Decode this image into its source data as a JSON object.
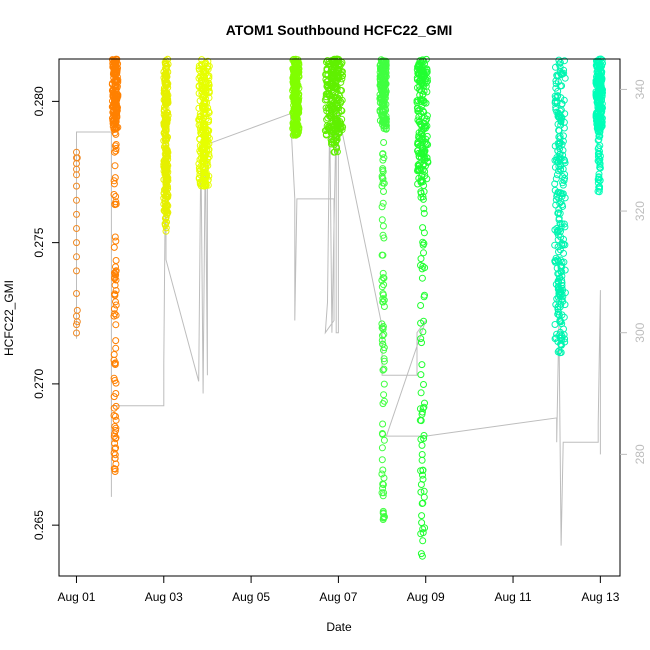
{
  "chart_data": {
    "type": "scatter",
    "title": "ATOM1 Southbound HCFC22_GMI",
    "xlabel": "Date",
    "ylabel": "HCFC22_GMI",
    "x_ticks": [
      {
        "day": 1,
        "label": "Aug 01"
      },
      {
        "day": 3,
        "label": "Aug 03"
      },
      {
        "day": 5,
        "label": "Aug 05"
      },
      {
        "day": 7,
        "label": "Aug 07"
      },
      {
        "day": 9,
        "label": "Aug 09"
      },
      {
        "day": 11,
        "label": "Aug 11"
      },
      {
        "day": 13,
        "label": "Aug 13"
      }
    ],
    "xlim": [
      0.6,
      13.45
    ],
    "ylim": [
      0.2632,
      0.2815
    ],
    "y_ticks": [
      {
        "value": 0.265,
        "label": "0.265"
      },
      {
        "value": 0.27,
        "label": "0.270"
      },
      {
        "value": 0.275,
        "label": "0.275"
      },
      {
        "value": 0.28,
        "label": "0.280"
      }
    ],
    "y2_lim": [
      260,
      345
    ],
    "y2_ticks": [
      {
        "value": 280,
        "label": "280"
      },
      {
        "value": 300,
        "label": "300"
      },
      {
        "value": 320,
        "label": "320"
      },
      {
        "value": 340,
        "label": "340"
      }
    ],
    "secondary_series": {
      "color": "#bdbdbd",
      "points": [
        [
          1.0,
          299.0
        ],
        [
          1.0,
          333.0
        ],
        [
          1.8,
          333.0
        ],
        [
          1.8,
          273.0
        ],
        [
          1.8,
          288.0
        ],
        [
          3.0,
          288.0
        ],
        [
          3.0,
          295.0
        ],
        [
          3.05,
          337.0
        ],
        [
          3.05,
          312.0
        ],
        [
          3.8,
          292.0
        ],
        [
          3.85,
          331.0
        ],
        [
          3.9,
          290.0
        ],
        [
          3.95,
          331.0
        ],
        [
          4.0,
          293.0
        ],
        [
          4.0,
          331.0
        ],
        [
          5.9,
          336.0
        ],
        [
          6.0,
          322.0
        ],
        [
          6.0,
          302.0
        ],
        [
          6.05,
          322.0
        ],
        [
          6.9,
          322.0
        ],
        [
          6.9,
          302.0
        ],
        [
          6.7,
          300.0
        ],
        [
          6.75,
          305.0
        ],
        [
          6.8,
          336.0
        ],
        [
          6.85,
          300.0
        ],
        [
          6.95,
          336.0
        ],
        [
          6.95,
          300.0
        ],
        [
          7.0,
          300.0
        ],
        [
          7.0,
          336.0
        ],
        [
          8.0,
          301.0
        ],
        [
          8.0,
          293.0
        ],
        [
          8.8,
          293.0
        ],
        [
          8.8,
          300.0
        ],
        [
          9.0,
          302.0
        ],
        [
          8.1,
          283.0
        ],
        [
          9.0,
          283.0
        ],
        [
          12.0,
          286.0
        ],
        [
          12.0,
          282.0
        ],
        [
          12.05,
          302.0
        ],
        [
          12.1,
          265.0
        ],
        [
          12.15,
          282.0
        ],
        [
          12.95,
          282.0
        ],
        [
          12.95,
          285.0
        ],
        [
          13.0,
          307.0
        ],
        [
          13.0,
          280.0
        ]
      ]
    },
    "series": [
      {
        "color": "#f08a24",
        "points": [
          [
            1.0,
            0.2782
          ],
          [
            1.0,
            0.278
          ],
          [
            1.0,
            0.2778
          ],
          [
            1.0,
            0.2776
          ],
          [
            1.0,
            0.2774
          ],
          [
            1.0,
            0.277
          ],
          [
            1.0,
            0.2765
          ],
          [
            1.0,
            0.276
          ],
          [
            1.0,
            0.2755
          ],
          [
            1.0,
            0.275
          ],
          [
            1.0,
            0.2745
          ],
          [
            1.0,
            0.274
          ],
          [
            1.0,
            0.2732
          ],
          [
            1.0,
            0.2724
          ],
          [
            1.0,
            0.2721
          ],
          [
            1.0,
            0.2718
          ],
          [
            1.02,
            0.2722
          ],
          [
            1.02,
            0.278
          ],
          [
            1.02,
            0.2726
          ]
        ],
        "style": "open-circle"
      },
      {
        "color": "#ff8000",
        "band": [
          1.82,
          1.95
        ],
        "ymin": 0.2669,
        "ymax": 0.2815,
        "dense": [
          0.279,
          0.2815
        ],
        "style": "open-circle"
      },
      {
        "color": "#e6f000",
        "band": [
          3.0,
          3.1
        ],
        "ymin": 0.2754,
        "ymax": 0.2815,
        "dense": [
          0.276,
          0.2815
        ],
        "style": "open-circle"
      },
      {
        "color": "#e6ff00",
        "band": [
          3.8,
          4.05
        ],
        "ymin": 0.277,
        "ymax": 0.2815,
        "dense": [
          0.277,
          0.2815
        ],
        "style": "open-circle"
      },
      {
        "color": "#80ff00",
        "band": [
          5.95,
          6.1
        ],
        "ymin": 0.2788,
        "ymax": 0.2815,
        "dense": [
          0.2788,
          0.2815
        ],
        "style": "open-circle"
      },
      {
        "color": "#60f000",
        "band": [
          6.7,
          7.1
        ],
        "ymin": 0.2782,
        "ymax": 0.2815,
        "dense": [
          0.2788,
          0.2815
        ],
        "style": "open-circle"
      },
      {
        "color": "#40ff40",
        "band": [
          7.95,
          8.1
        ],
        "ymin": 0.2652,
        "ymax": 0.2815,
        "dense": [
          0.279,
          0.2815
        ],
        "style": "open-circle"
      },
      {
        "color": "#20ff30",
        "band": [
          8.8,
          9.05
        ],
        "ymin": 0.2639,
        "ymax": 0.2815,
        "dense": [
          0.277,
          0.2815
        ],
        "style": "open-circle"
      },
      {
        "color": "#00f5b0",
        "band": [
          11.95,
          12.2
        ],
        "ymin": 0.2711,
        "ymax": 0.2815,
        "dense": [
          0.2711,
          0.2815
        ],
        "style": "open-circle"
      },
      {
        "color": "#00ffb8",
        "band": [
          12.9,
          13.05
        ],
        "ymin": 0.2768,
        "ymax": 0.2815,
        "dense": [
          0.279,
          0.2815
        ],
        "style": "open-circle"
      }
    ]
  }
}
